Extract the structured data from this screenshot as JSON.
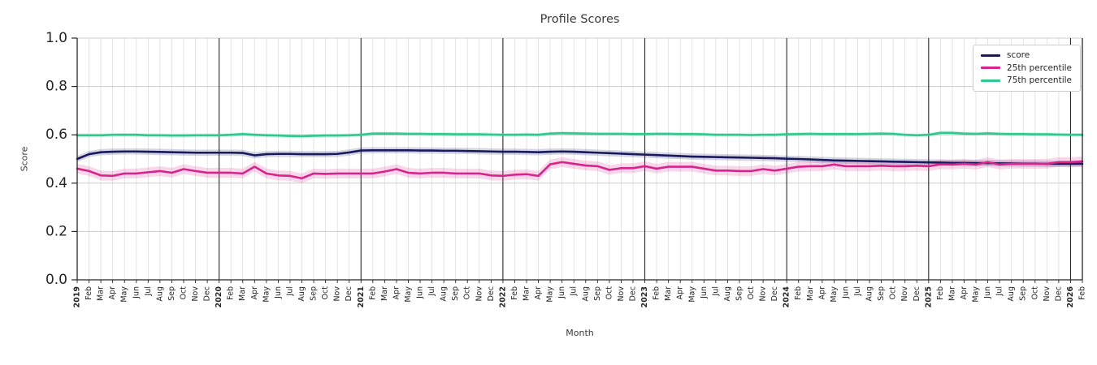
{
  "figure": {
    "title": "Profile Scores",
    "xlabel": "Month",
    "ylabel": "Score"
  },
  "chart_data": {
    "type": "line",
    "title": "Profile Scores",
    "xlabel": "Month",
    "ylabel": "Score",
    "ylim": [
      0.0,
      1.0
    ],
    "grid": true,
    "legend_position": "upper right",
    "y_tick_labels": [
      "0.0",
      "0.2",
      "0.4",
      "0.6",
      "0.8",
      "1.0"
    ],
    "x_tick_labels": [
      "2019",
      "Feb",
      "Mar",
      "Apr",
      "May",
      "Jun",
      "Jul",
      "Aug",
      "Sep",
      "Oct",
      "Nov",
      "Dec",
      "2020",
      "Feb",
      "Mar",
      "Apr",
      "May",
      "Jun",
      "Jul",
      "Aug",
      "Sep",
      "Oct",
      "Nov",
      "Dec",
      "2021",
      "Feb",
      "Mar",
      "Apr",
      "May",
      "Jun",
      "Jul",
      "Aug",
      "Sep",
      "Oct",
      "Nov",
      "Dec",
      "2022",
      "Feb",
      "Mar",
      "Apr",
      "May",
      "Jun",
      "Jul",
      "Aug",
      "Sep",
      "Oct",
      "Nov",
      "Dec",
      "2023",
      "Feb",
      "Mar",
      "Apr",
      "May",
      "Jun",
      "Jul",
      "Aug",
      "Sep",
      "Oct",
      "Nov",
      "Dec",
      "2024",
      "Feb",
      "Mar",
      "Apr",
      "May",
      "Jun",
      "Jul",
      "Aug",
      "Sep",
      "Oct",
      "Nov",
      "Dec",
      "2025",
      "Feb",
      "Mar",
      "Apr",
      "May",
      "Jun",
      "Jul",
      "Aug",
      "Sep",
      "Oct",
      "Nov",
      "Dec",
      "2026",
      "Feb"
    ],
    "year_line_indices": [
      12,
      24,
      36,
      48,
      60,
      72,
      84
    ],
    "series": [
      {
        "name": "score",
        "color": "#191960",
        "band_halfwidth": 0.013,
        "values": [
          0.5,
          0.52,
          0.528,
          0.53,
          0.531,
          0.531,
          0.53,
          0.529,
          0.528,
          0.527,
          0.526,
          0.526,
          0.526,
          0.526,
          0.525,
          0.515,
          0.52,
          0.521,
          0.521,
          0.52,
          0.52,
          0.52,
          0.521,
          0.527,
          0.535,
          0.536,
          0.536,
          0.536,
          0.536,
          0.535,
          0.535,
          0.534,
          0.534,
          0.533,
          0.532,
          0.531,
          0.53,
          0.53,
          0.529,
          0.528,
          0.53,
          0.531,
          0.53,
          0.528,
          0.526,
          0.524,
          0.522,
          0.52,
          0.518,
          0.516,
          0.514,
          0.512,
          0.51,
          0.509,
          0.508,
          0.507,
          0.506,
          0.505,
          0.504,
          0.503,
          0.501,
          0.5,
          0.498,
          0.496,
          0.494,
          0.493,
          0.492,
          0.491,
          0.49,
          0.489,
          0.488,
          0.487,
          0.486,
          0.485,
          0.484,
          0.484,
          0.483,
          0.483,
          0.482,
          0.482,
          0.481,
          0.481,
          0.48,
          0.48,
          0.48,
          0.48
        ]
      },
      {
        "name": "25th percentile",
        "color": "#d6248c",
        "band_halfwidth": 0.02,
        "values": [
          0.46,
          0.45,
          0.432,
          0.43,
          0.44,
          0.44,
          0.445,
          0.45,
          0.443,
          0.458,
          0.45,
          0.443,
          0.443,
          0.443,
          0.44,
          0.468,
          0.44,
          0.432,
          0.43,
          0.42,
          0.44,
          0.438,
          0.44,
          0.44,
          0.44,
          0.44,
          0.448,
          0.458,
          0.443,
          0.44,
          0.443,
          0.443,
          0.44,
          0.44,
          0.44,
          0.432,
          0.43,
          0.435,
          0.437,
          0.43,
          0.478,
          0.487,
          0.48,
          0.473,
          0.47,
          0.455,
          0.462,
          0.462,
          0.47,
          0.46,
          0.468,
          0.468,
          0.468,
          0.46,
          0.452,
          0.452,
          0.45,
          0.45,
          0.458,
          0.452,
          0.46,
          0.468,
          0.47,
          0.47,
          0.477,
          0.47,
          0.47,
          0.47,
          0.472,
          0.47,
          0.47,
          0.472,
          0.47,
          0.478,
          0.477,
          0.48,
          0.477,
          0.487,
          0.477,
          0.48,
          0.48,
          0.48,
          0.48,
          0.487,
          0.487,
          0.49
        ]
      },
      {
        "name": "75th percentile",
        "color": "#2ec98c",
        "band_halfwidth": 0.008,
        "values": [
          0.598,
          0.598,
          0.598,
          0.6,
          0.6,
          0.6,
          0.598,
          0.598,
          0.597,
          0.597,
          0.598,
          0.598,
          0.598,
          0.6,
          0.603,
          0.6,
          0.598,
          0.597,
          0.595,
          0.594,
          0.596,
          0.597,
          0.597,
          0.598,
          0.6,
          0.605,
          0.605,
          0.605,
          0.604,
          0.604,
          0.603,
          0.603,
          0.602,
          0.602,
          0.602,
          0.601,
          0.6,
          0.6,
          0.601,
          0.6,
          0.605,
          0.607,
          0.606,
          0.605,
          0.604,
          0.604,
          0.604,
          0.603,
          0.603,
          0.604,
          0.604,
          0.603,
          0.603,
          0.602,
          0.6,
          0.6,
          0.6,
          0.599,
          0.6,
          0.6,
          0.602,
          0.603,
          0.604,
          0.603,
          0.603,
          0.603,
          0.603,
          0.604,
          0.605,
          0.604,
          0.6,
          0.598,
          0.6,
          0.608,
          0.608,
          0.605,
          0.604,
          0.606,
          0.604,
          0.603,
          0.603,
          0.602,
          0.602,
          0.601,
          0.6,
          0.6
        ]
      }
    ]
  }
}
